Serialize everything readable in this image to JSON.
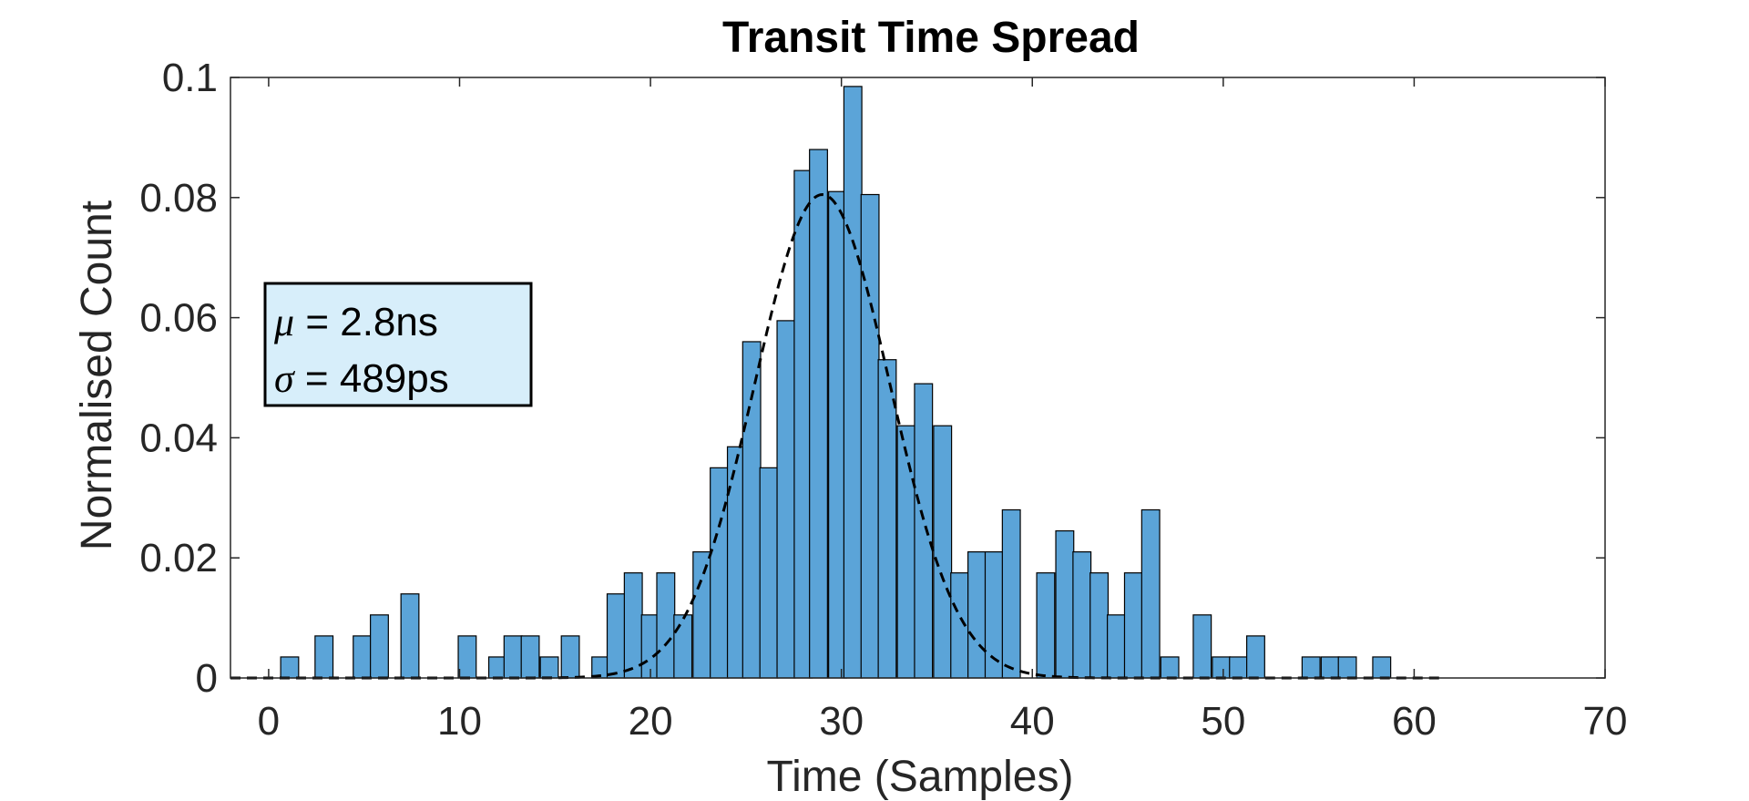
{
  "chart_data": {
    "type": "bar",
    "title": "Transit Time Spread",
    "xlabel": "Time (Samples)",
    "ylabel": "Normalised Count",
    "xlim": [
      -2,
      70
    ],
    "ylim": [
      0,
      0.1
    ],
    "xticks": [
      "0",
      "10",
      "20",
      "30",
      "40",
      "50",
      "60",
      "70"
    ],
    "yticks": [
      "0",
      "0.02",
      "0.04",
      "0.06",
      "0.08",
      "0.1"
    ],
    "bin_width": 0.94,
    "bar_color": "#5ba4d8",
    "bar_edge_color": "#000000",
    "grid": false,
    "series": [
      {
        "bin_centers": [
          1.1,
          2.9,
          4.9,
          5.8,
          7.4,
          10.4,
          12.0,
          12.8,
          13.7,
          14.7,
          15.8,
          17.4,
          18.2,
          19.1,
          20.0,
          20.8,
          21.7,
          22.7,
          23.6,
          24.5,
          25.3,
          26.2,
          27.1,
          28.0,
          28.8,
          29.8,
          30.6,
          31.5,
          32.4,
          33.4,
          34.3,
          35.3,
          36.2,
          37.1,
          38.0,
          38.9,
          40.7,
          41.7,
          42.6,
          43.5,
          44.4,
          45.3,
          46.2,
          47.2,
          48.9,
          49.9,
          50.8,
          51.7,
          54.6,
          55.6,
          56.5,
          58.3
        ],
        "values": [
          0.0035,
          0.007,
          0.007,
          0.0105,
          0.014,
          0.007,
          0.0035,
          0.007,
          0.007,
          0.0035,
          0.007,
          0.0035,
          0.014,
          0.0175,
          0.0105,
          0.0175,
          0.0105,
          0.021,
          0.035,
          0.0385,
          0.056,
          0.035,
          0.0595,
          0.0845,
          0.088,
          0.081,
          0.0985,
          0.0805,
          0.053,
          0.042,
          0.049,
          0.042,
          0.0175,
          0.021,
          0.021,
          0.028,
          0.0175,
          0.0245,
          0.021,
          0.0175,
          0.0105,
          0.0175,
          0.028,
          0.0035,
          0.0105,
          0.0035,
          0.0035,
          0.007,
          0.0035,
          0.0035,
          0.0035,
          0.0035
        ]
      },
      {
        "type": "line",
        "style": "dashed",
        "color": "#000000",
        "mean": 29.0,
        "sigma": 3.55,
        "peak": 0.0805,
        "x_start": -2,
        "x_end": 61.5
      }
    ]
  },
  "annotation": {
    "mu_symbol": "μ",
    "mu_text": " = 2.8ns",
    "sigma_symbol": "σ",
    "sigma_text": " = 489ps",
    "background_color": "#d7eefa"
  }
}
